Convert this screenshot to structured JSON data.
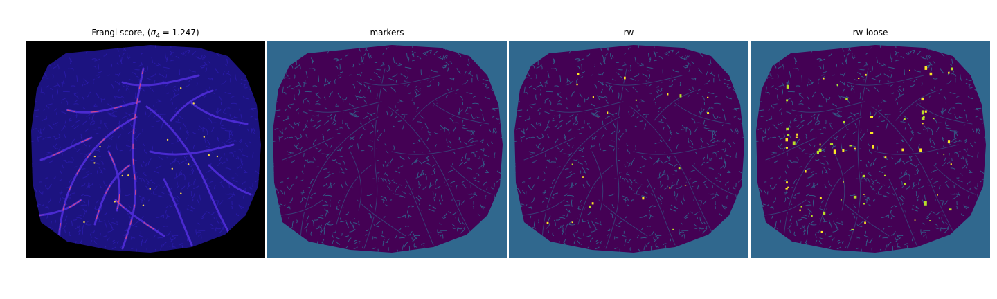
{
  "figure": {
    "panels": [
      {
        "id": "frangi",
        "title_prefix": "Frangi score, (",
        "title_sigma": "σ",
        "title_subscript": "4",
        "title_suffix": " = 1.247)",
        "background": "#000000",
        "field_color": "#1c1380",
        "vessel_color": "#4a2ad0",
        "highlight_color": "#d1478a",
        "peak_color": "#fbd84a",
        "colormap": "plasma"
      },
      {
        "id": "markers",
        "title": "markers",
        "background": "#30688e",
        "field_color": "#440154",
        "vessel_color": "#440154",
        "colormap": "viridis"
      },
      {
        "id": "rw",
        "title": "rw",
        "background": "#30688e",
        "field_color": "#440154",
        "vessel_color": "#440154",
        "highlight_color": "#b8de29",
        "peak_color": "#fde725",
        "colormap": "viridis"
      },
      {
        "id": "rw-loose",
        "title": "rw-loose",
        "background": "#30688e",
        "field_color": "#440154",
        "vessel_color": "#440154",
        "highlight_color": "#b8de29",
        "peak_color": "#fde725",
        "colormap": "viridis"
      }
    ]
  }
}
